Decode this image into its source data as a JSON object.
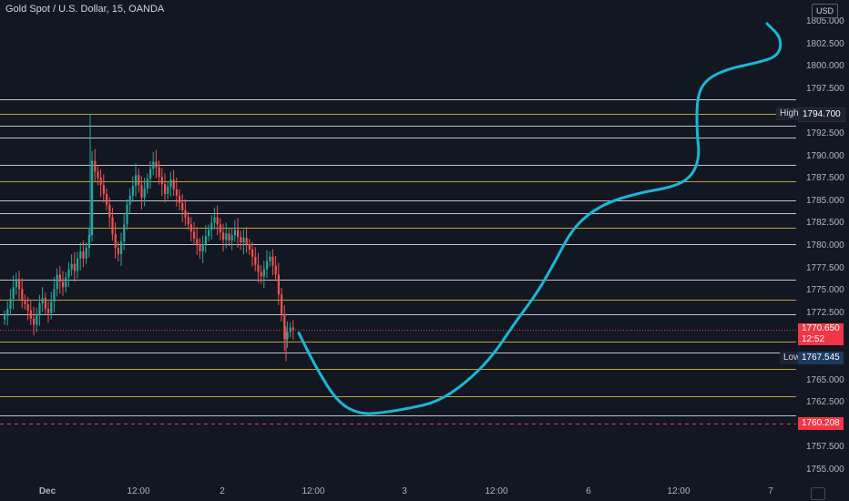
{
  "header": {
    "symbol_title": "Gold Spot / U.S. Dollar, 15, OANDA"
  },
  "price_axis": {
    "unit": "USD",
    "labels": [
      "1805.000",
      "1802.500",
      "1800.000",
      "1797.500",
      "1792.500",
      "1790.000",
      "1787.500",
      "1785.000",
      "1782.500",
      "1780.000",
      "1777.500",
      "1775.000",
      "1772.500",
      "1765.000",
      "1762.500",
      "1757.500",
      "1755.000"
    ],
    "high_tag": {
      "label": "High",
      "value": "1794.700"
    },
    "low_tag": {
      "label": "Low",
      "value": "1767.545"
    },
    "last_price": {
      "value": "1770.650",
      "countdown": "12:52"
    },
    "alert_price": "1760.208"
  },
  "time_axis": {
    "labels": [
      "Dec",
      "12:00",
      "2",
      "12:00",
      "3",
      "12:00",
      "6",
      "12:00",
      "7"
    ]
  },
  "colors": {
    "background": "#131722",
    "up_candle": "#26a69a",
    "down_candle": "#ef5350",
    "white_level": "#d1d4dc",
    "yellow_level": "#c9b53a",
    "forecast_path": "#18b8d6",
    "alert_line": "#f23645"
  },
  "icons": {
    "settings_corner": "gear-icon"
  },
  "chart_data": {
    "type": "candlestick",
    "title": "Gold Spot / U.S. Dollar, 15, OANDA",
    "y_unit": "USD",
    "ylim": [
      1753.5,
      1806.2
    ],
    "horizontal_levels_white": [
      1796.4,
      1793.4,
      1792.1,
      1789.0,
      1785.1,
      1783.7,
      1780.2,
      1776.2,
      1772.4,
      1768.1,
      1761.1
    ],
    "horizontal_levels_yellow": [
      1794.7,
      1787.2,
      1782.0,
      1774.0,
      1769.3,
      1766.3,
      1763.2
    ],
    "alert_level": 1760.208,
    "last_price": 1770.65,
    "session_high": 1794.7,
    "session_low": 1767.545,
    "close_series": [
      1772.2,
      1773.0,
      1774.1,
      1775.4,
      1776.3,
      1775.2,
      1774.0,
      1773.5,
      1772.8,
      1771.9,
      1771.2,
      1772.4,
      1773.6,
      1774.2,
      1773.0,
      1772.5,
      1773.8,
      1775.2,
      1776.8,
      1776.0,
      1775.4,
      1776.5,
      1777.4,
      1778.0,
      1777.2,
      1778.6,
      1779.4,
      1778.6,
      1779.8,
      1781.2,
      1789.5,
      1788.3,
      1787.6,
      1786.8,
      1785.8,
      1784.6,
      1783.2,
      1781.3,
      1779.8,
      1779.1,
      1780.5,
      1782.4,
      1784.6,
      1785.6,
      1786.7,
      1787.9,
      1786.8,
      1785.4,
      1786.4,
      1787.5,
      1788.6,
      1789.4,
      1788.8,
      1787.7,
      1786.9,
      1785.8,
      1786.6,
      1787.4,
      1786.3,
      1785.6,
      1784.8,
      1784.0,
      1783.2,
      1782.4,
      1781.6,
      1780.8,
      1780.2,
      1779.4,
      1780.2,
      1781.1,
      1781.8,
      1782.6,
      1783.2,
      1782.4,
      1781.5,
      1780.7,
      1781.4,
      1780.6,
      1781.2,
      1781.8,
      1781.0,
      1780.4,
      1780.9,
      1780.2,
      1779.6,
      1778.8,
      1777.9,
      1777.1,
      1776.6,
      1777.4,
      1778.3,
      1778.8,
      1777.8,
      1776.8,
      1774.6,
      1772.4,
      1769.6,
      1770.4,
      1770.9,
      1770.65
    ],
    "forecast_path": {
      "description_points_price": [
        1770.3,
        1766.8,
        1762.6,
        1761.2,
        1761.4,
        1761.9,
        1762.6,
        1764.6,
        1767.6,
        1771.4,
        1774.8,
        1778.4,
        1782.2,
        1784.6,
        1785.9,
        1786.6,
        1787.8,
        1790.0,
        1792.6,
        1796.6,
        1798.6,
        1799.8,
        1800.4,
        1801.2,
        1803.2,
        1804.8
      ]
    }
  }
}
